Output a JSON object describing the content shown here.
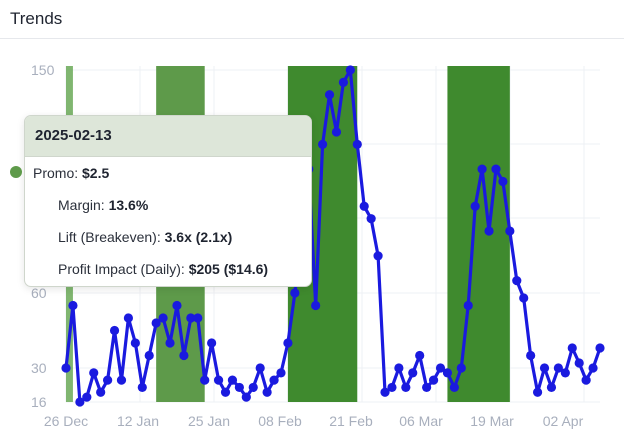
{
  "panel": {
    "title": "Trends"
  },
  "chart_data": {
    "type": "line",
    "x_ticks": [
      "26 Dec",
      "12 Jan",
      "25 Jan",
      "08 Feb",
      "21 Feb",
      "06 Mar",
      "19 Mar",
      "02 Apr"
    ],
    "y_ticks": [
      150,
      60,
      30,
      16
    ],
    "ylim": [
      16,
      150
    ],
    "grid": true,
    "colors": {
      "line": "#1a1adf",
      "promo_band_light": "#5e9a4a",
      "promo_band_dark": "#3f8a2e"
    },
    "promo_periods": [
      {
        "start_index": 0,
        "end_index": 1
      },
      {
        "start_index": 13,
        "end_index": 20
      },
      {
        "start_index": 32,
        "end_index": 42
      },
      {
        "start_index": 55,
        "end_index": 64
      }
    ],
    "series": [
      {
        "values": [
          30,
          55,
          16,
          18,
          28,
          20,
          25,
          45,
          25,
          50,
          40,
          22,
          35,
          48,
          50,
          40,
          55,
          35,
          50,
          50,
          25,
          40,
          25,
          20,
          25,
          22,
          18,
          22,
          30,
          20,
          25,
          28,
          40,
          60,
          85,
          110,
          55,
          120,
          140,
          125,
          145,
          150,
          120,
          95,
          90,
          75,
          20,
          22,
          30,
          22,
          28,
          35,
          22,
          25,
          30,
          28,
          22,
          30,
          55,
          95,
          110,
          85,
          110,
          105,
          85,
          65,
          58,
          35,
          20,
          30,
          22,
          30,
          28,
          38,
          32,
          25,
          30,
          38
        ],
        "tooltip_index": 12
      }
    ]
  },
  "tooltip": {
    "date": "2025-02-13",
    "rows": [
      {
        "label": "Promo: ",
        "value": "$2.5"
      },
      {
        "label": "Margin: ",
        "value": "13.6%"
      },
      {
        "label": "Lift (Breakeven): ",
        "value": "3.6x (2.1x)"
      },
      {
        "label": "Profit Impact (Daily): ",
        "value": "$205 ($14.6)"
      }
    ]
  }
}
